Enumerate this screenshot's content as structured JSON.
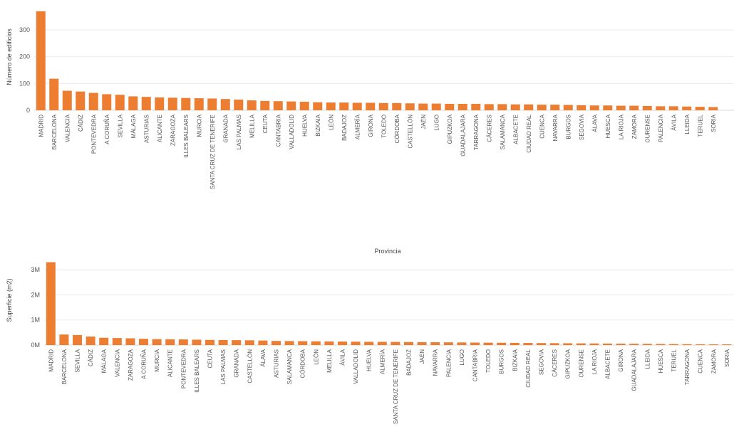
{
  "colors": {
    "bar": "#ED7D31",
    "grid": "#ececec",
    "text": "#555555"
  },
  "chart_data": [
    {
      "type": "bar",
      "title": "",
      "xlabel": "",
      "ylabel": "Número de edificios",
      "ylim": [
        0,
        380
      ],
      "yticks": [
        0,
        100,
        200,
        300
      ],
      "ytick_labels": [
        "0",
        "100",
        "200",
        "300"
      ],
      "grid": true,
      "categories": [
        "MADRID",
        "BARCELONA",
        "VALENCIA",
        "CÁDIZ",
        "PONTEVEDRA",
        "A CORUÑA",
        "SEVILLA",
        "MÁLAGA",
        "ASTURIAS",
        "ALICANTE",
        "ZARAGOZA",
        "ILLES BALEARS",
        "MURCIA",
        "SANTA CRUZ DE TENERIFE",
        "GRANADA",
        "LAS PALMAS",
        "MELILLA",
        "CEUTA",
        "CANTABRIA",
        "VALLADOLID",
        "HUELVA",
        "BIZKAIA",
        "LEÓN",
        "BADAJOZ",
        "ALMERÍA",
        "GIRONA",
        "TOLEDO",
        "CÓRDOBA",
        "CASTELLÓN",
        "JAÉN",
        "LUGO",
        "GIPUZKOA",
        "GUADALAJARA",
        "TARRAGONA",
        "CÁCERES",
        "SALAMANCA",
        "ALBACETE",
        "CIUDAD REAL",
        "CUENCA",
        "NAVARRA",
        "BURGOS",
        "SEGOVIA",
        "ÁLAVA",
        "HUESCA",
        "LA RIOJA",
        "ZAMORA",
        "OURENSE",
        "PALENCIA",
        "ÁVILA",
        "LLEIDA",
        "TERUEL",
        "SORIA"
      ],
      "values": [
        370,
        118,
        73,
        70,
        65,
        60,
        58,
        52,
        50,
        48,
        47,
        46,
        45,
        44,
        42,
        40,
        37,
        35,
        34,
        33,
        32,
        30,
        29,
        29,
        28,
        28,
        27,
        27,
        26,
        25,
        25,
        24,
        24,
        24,
        23,
        23,
        22,
        22,
        21,
        21,
        20,
        19,
        18,
        18,
        17,
        17,
        16,
        15,
        15,
        14,
        13,
        12
      ]
    },
    {
      "type": "bar",
      "title": "Provincia",
      "xlabel": "",
      "ylabel": "Superficie (m2)",
      "ylim": [
        0,
        3400000
      ],
      "yticks": [
        0,
        1000000,
        2000000,
        3000000
      ],
      "ytick_labels": [
        "0M",
        "1M",
        "2M",
        "3M"
      ],
      "grid": true,
      "categories": [
        "MADRID",
        "BARCELONA",
        "SEVILLA",
        "CÁDIZ",
        "MÁLAGA",
        "VALENCIA",
        "ZARAGOZA",
        "A CORUÑA",
        "MURCIA",
        "ALICANTE",
        "PONTEVEDRA",
        "ILLES BALEARS",
        "CEUTA",
        "LAS PALMAS",
        "GRANADA",
        "CASTELLÓN",
        "ÁLAVA",
        "ASTURIAS",
        "SALAMANCA",
        "CÓRDOBA",
        "LEÓN",
        "MELILLA",
        "ÁVILA",
        "VALLADOLID",
        "HUELVA",
        "ALMERÍA",
        "SANTA CRUZ DE TENERIFE",
        "BADAJOZ",
        "JAÉN",
        "NAVARRA",
        "PALENCIA",
        "LUGO",
        "CANTABRIA",
        "TOLEDO",
        "BURGOS",
        "BIZKAIA",
        "CIUDAD REAL",
        "SEGOVIA",
        "CÁCERES",
        "GIPUZKOA",
        "OURENSE",
        "LA RIOJA",
        "ALBACETE",
        "GIRONA",
        "GUADALAJARA",
        "LLEIDA",
        "HUESCA",
        "TERUEL",
        "TARRAGONA",
        "CUENCA",
        "ZAMORA",
        "SORIA"
      ],
      "values": [
        3300000,
        420000,
        400000,
        340000,
        290000,
        280000,
        270000,
        250000,
        235000,
        230000,
        225000,
        215000,
        205000,
        200000,
        195000,
        190000,
        180000,
        165000,
        160000,
        155000,
        150000,
        145000,
        140000,
        135000,
        130000,
        128000,
        125000,
        120000,
        115000,
        112000,
        108000,
        104000,
        100000,
        96000,
        92000,
        88000,
        84000,
        80000,
        76000,
        72000,
        68000,
        64000,
        60000,
        56000,
        52000,
        48000,
        44000,
        40000,
        36000,
        32000,
        28000,
        24000
      ]
    }
  ]
}
